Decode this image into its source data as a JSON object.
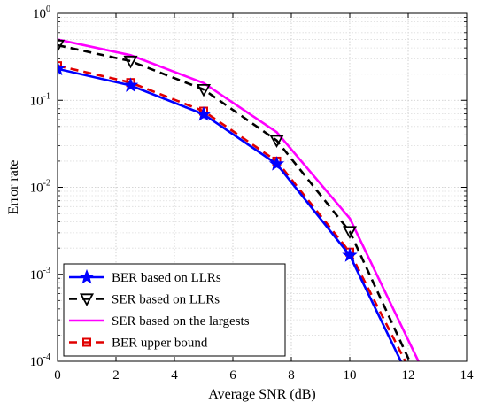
{
  "chart_data": {
    "type": "line",
    "xlabel": "Average SNR (dB)",
    "ylabel": "Error rate",
    "xlim": [
      0,
      14
    ],
    "ylim": [
      0.0001,
      1
    ],
    "yscale": "log",
    "grid": true,
    "legend_position": "bottom-left",
    "x_ticks": [
      "0",
      "2",
      "4",
      "6",
      "8",
      "10",
      "12",
      "14"
    ],
    "y_ticks": [
      {
        "base": "10",
        "exp": "0",
        "value": 1
      },
      {
        "base": "10",
        "exp": "-1",
        "value": 0.1
      },
      {
        "base": "10",
        "exp": "-2",
        "value": 0.01
      },
      {
        "base": "10",
        "exp": "-3",
        "value": 0.001
      },
      {
        "base": "10",
        "exp": "-4",
        "value": 0.0001
      }
    ],
    "series": [
      {
        "name": "BER based on LLRs",
        "color": "#0000ff",
        "dash": "solid",
        "marker": "star",
        "x": [
          0,
          2.5,
          5,
          7.5,
          10,
          11.75
        ],
        "y": [
          0.23,
          0.148,
          0.069,
          0.0185,
          0.00165,
          0.0001
        ]
      },
      {
        "name": "SER based on LLRs",
        "color": "#000000",
        "dash": "dashed",
        "marker": "triangle-down",
        "x": [
          0,
          2.5,
          5,
          7.5,
          10,
          12.05
        ],
        "y": [
          0.43,
          0.282,
          0.133,
          0.0345,
          0.0031,
          0.0001
        ]
      },
      {
        "name": "SER based on the largests",
        "color": "#ff00ff",
        "dash": "solid",
        "marker": "none",
        "x": [
          0,
          2.5,
          5,
          7.5,
          10,
          12.35
        ],
        "y": [
          0.5,
          0.33,
          0.158,
          0.043,
          0.0044,
          0.0001
        ]
      },
      {
        "name": "BER upper bound",
        "color": "#e00000",
        "dash": "dashed",
        "marker": "square",
        "x": [
          0,
          2.5,
          5,
          7.5,
          10,
          11.9
        ],
        "y": [
          0.25,
          0.16,
          0.075,
          0.02,
          0.0018,
          0.0001
        ]
      }
    ]
  }
}
